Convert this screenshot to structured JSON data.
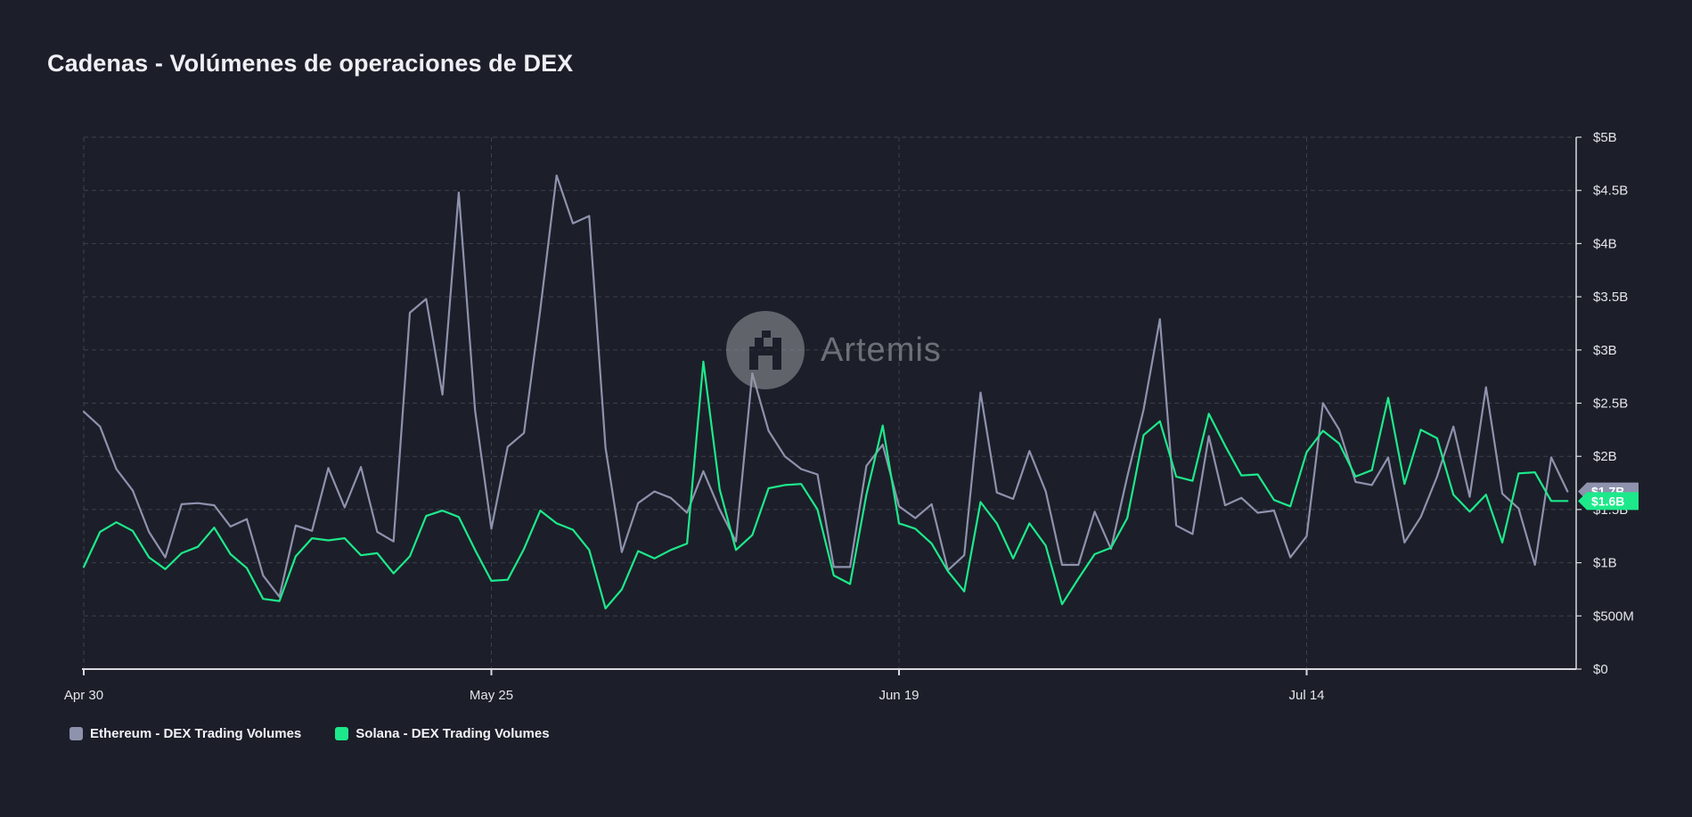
{
  "title": "Cadenas - Volúmenes de operaciones de DEX",
  "watermark": {
    "text": "Artemis",
    "icon": "artemis-logo-icon"
  },
  "legend": [
    {
      "label": "Ethereum - DEX Trading Volumes",
      "color": "#8e92ad"
    },
    {
      "label": "Solana - DEX Trading Volumes",
      "color": "#1de98b"
    }
  ],
  "colors": {
    "background": "#1c1f29",
    "grid": "#3c404d",
    "axis": "#d9dae0",
    "ethereum": "#8e92ad",
    "solana": "#1de98b"
  },
  "chart_data": {
    "type": "line",
    "title": "Cadenas - Volúmenes de operaciones de DEX",
    "xlabel": "",
    "ylabel": "",
    "x_tick_labels": [
      "Apr 30",
      "May 25",
      "Jun 19",
      "Jul 14"
    ],
    "x_tick_days": [
      0,
      25,
      50,
      75
    ],
    "y_tick_labels": [
      "$0",
      "$500M",
      "$1B",
      "$1.5B",
      "$2B",
      "$2.5B",
      "$3B",
      "$3.5B",
      "$4B",
      "$4.5B",
      "$5B"
    ],
    "y_tick_values": [
      0,
      0.5,
      1,
      1.5,
      2,
      2.5,
      3,
      3.5,
      4,
      4.5,
      5
    ],
    "ylim": [
      0,
      5
    ],
    "y_unit": "billions USD",
    "grid": true,
    "legend_position": "bottom-left",
    "end_labels": [
      {
        "series": "Ethereum - DEX Trading Volumes",
        "text": "$1.7B"
      },
      {
        "series": "Solana - DEX Trading Volumes",
        "text": "$1.6B"
      }
    ],
    "x_start": "Apr 30",
    "x_step_days": 1,
    "series": [
      {
        "name": "Ethereum - DEX Trading Volumes",
        "color": "#8e92ad",
        "values": [
          2.42,
          2.28,
          1.88,
          1.68,
          1.29,
          1.05,
          1.55,
          1.56,
          1.54,
          1.34,
          1.41,
          0.88,
          0.68,
          1.35,
          1.3,
          1.89,
          1.52,
          1.9,
          1.29,
          1.2,
          3.35,
          3.48,
          2.58,
          4.48,
          2.43,
          1.32,
          2.09,
          2.22,
          3.38,
          4.64,
          4.19,
          4.26,
          2.08,
          1.1,
          1.56,
          1.67,
          1.61,
          1.47,
          1.86,
          1.5,
          1.2,
          2.78,
          2.24,
          2.0,
          1.88,
          1.83,
          0.96,
          0.96,
          1.91,
          2.11,
          1.53,
          1.42,
          1.55,
          0.93,
          1.07,
          2.6,
          1.66,
          1.6,
          2.05,
          1.67,
          0.98,
          0.98,
          1.48,
          1.13,
          1.81,
          2.44,
          3.29,
          1.35,
          1.27,
          2.19,
          1.54,
          1.61,
          1.47,
          1.49,
          1.05,
          1.25,
          2.5,
          2.25,
          1.76,
          1.73,
          1.99,
          1.19,
          1.43,
          1.81,
          2.28,
          1.62,
          2.65,
          1.65,
          1.51,
          0.98,
          1.99,
          1.67
        ]
      },
      {
        "name": "Solana - DEX Trading Volumes",
        "color": "#1de98b",
        "values": [
          0.96,
          1.29,
          1.38,
          1.3,
          1.05,
          0.94,
          1.09,
          1.15,
          1.33,
          1.08,
          0.95,
          0.66,
          0.64,
          1.06,
          1.23,
          1.21,
          1.23,
          1.07,
          1.09,
          0.9,
          1.06,
          1.44,
          1.49,
          1.43,
          1.12,
          0.83,
          0.84,
          1.13,
          1.49,
          1.37,
          1.31,
          1.12,
          0.57,
          0.75,
          1.11,
          1.04,
          1.12,
          1.18,
          2.89,
          1.69,
          1.12,
          1.26,
          1.7,
          1.73,
          1.74,
          1.5,
          0.88,
          0.8,
          1.64,
          2.29,
          1.37,
          1.32,
          1.18,
          0.92,
          0.73,
          1.57,
          1.37,
          1.04,
          1.37,
          1.16,
          0.61,
          0.85,
          1.08,
          1.14,
          1.42,
          2.2,
          2.33,
          1.81,
          1.77,
          2.4,
          2.1,
          1.82,
          1.83,
          1.59,
          1.53,
          2.04,
          2.24,
          2.12,
          1.81,
          1.87,
          2.55,
          1.74,
          2.25,
          2.17,
          1.64,
          1.48,
          1.64,
          1.19,
          1.84,
          1.85,
          1.58,
          1.58
        ]
      }
    ]
  }
}
